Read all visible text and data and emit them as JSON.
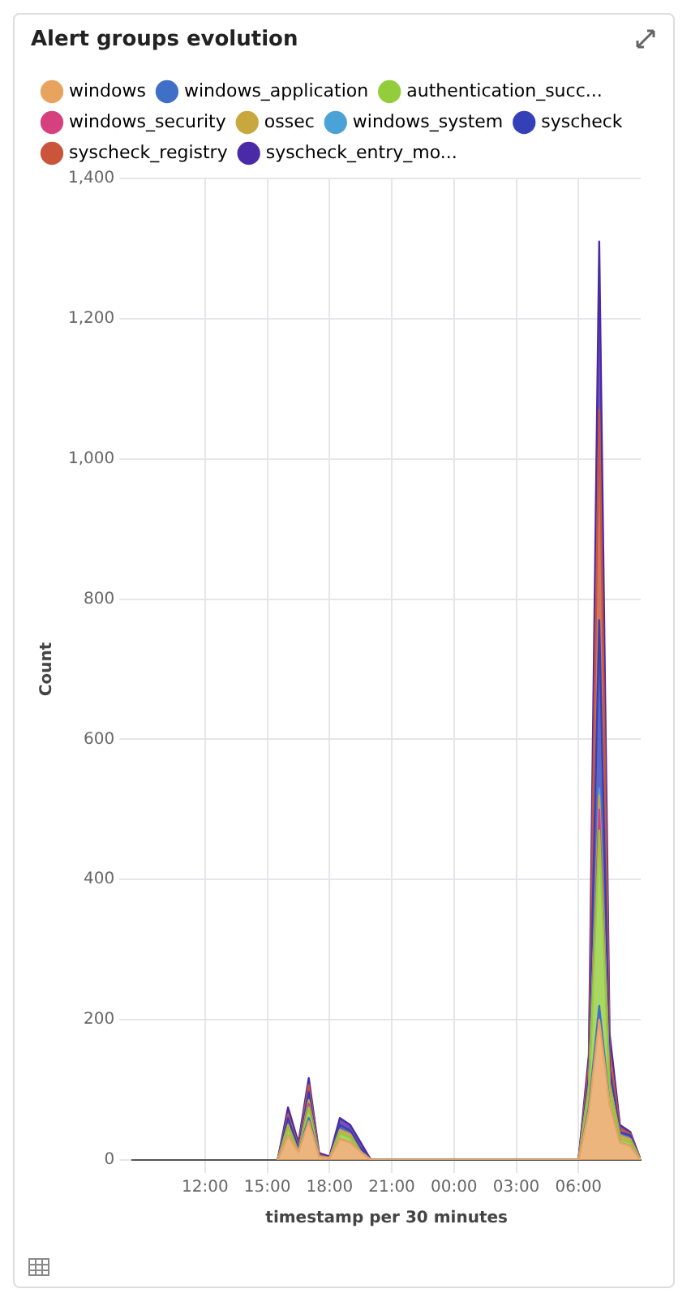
{
  "chart_data": {
    "type": "area",
    "title": "Alert groups evolution",
    "xlabel": "timestamp per 30 minutes",
    "ylabel": "Count",
    "stacked": true,
    "grid": true,
    "legend": "top",
    "marker": "none",
    "x": [
      "--01-01T15:30",
      "--01-01T16:00",
      "--01-01T16:30",
      "--01-01T17:00",
      "--01-01T17:30",
      "--01-01T18:00",
      "--01-01T18:30",
      "--01-01T19:00",
      "--01-01T19:30",
      "--01-01T20:00",
      "--01-01T20:30",
      "--01-01T21:00",
      "--01-01T21:30",
      "--01-01T22:00",
      "--01-01T22:30",
      "--01-01T23:00",
      "--01-01T23:30",
      "--01-02T00:00",
      "--01-02T00:30",
      "--01-02T01:00",
      "--01-02T01:30",
      "--01-02T02:00",
      "--01-02T02:30",
      "--01-02T03:00",
      "--01-02T03:30",
      "--01-02T04:00",
      "--01-02T04:30",
      "--01-02T05:00",
      "--01-02T05:30",
      "--01-02T06:00",
      "--01-02T06:30",
      "--01-02T07:00",
      "--01-02T07:30",
      "--01-02T08:00",
      "--01-02T08:30",
      "--01-02T09:00"
    ],
    "xlim": [
      "--01-01T08:30",
      "--01-02T09:00"
    ],
    "xticks": [
      {
        "value": "--01-01T12:00",
        "label": "12:00"
      },
      {
        "value": "--01-01T15:00",
        "label": "15:00"
      },
      {
        "value": "--01-01T18:00",
        "label": "18:00"
      },
      {
        "value": "--01-01T21:00",
        "label": "21:00"
      },
      {
        "value": "--01-02T00:00",
        "label": "00:00"
      },
      {
        "value": "--01-02T03:00",
        "label": "03:00"
      },
      {
        "value": "--01-02T06:00",
        "label": "06:00"
      }
    ],
    "ylim": [
      0,
      1400
    ],
    "yticks": [
      0,
      200,
      400,
      600,
      800,
      {
        "value": 1000,
        "label": "1,000"
      },
      {
        "value": 1200,
        "label": "1,200"
      },
      {
        "value": 1400,
        "label": "1,400"
      }
    ],
    "series": [
      {
        "name": "windows",
        "color": "#e8a35e",
        "values": [
          0,
          35,
          12,
          55,
          5,
          3,
          30,
          25,
          12,
          0,
          0,
          0,
          0,
          0,
          0,
          0,
          0,
          0,
          0,
          0,
          0,
          0,
          0,
          0,
          0,
          0,
          0,
          0,
          0,
          0,
          70,
          200,
          80,
          25,
          20,
          0
        ]
      },
      {
        "name": "windows_application",
        "color": "#3f6fc6",
        "values": [
          0,
          0,
          0,
          5,
          0,
          0,
          0,
          0,
          0,
          0,
          0,
          0,
          0,
          0,
          0,
          0,
          0,
          0,
          0,
          0,
          0,
          0,
          0,
          0,
          0,
          0,
          0,
          0,
          0,
          0,
          5,
          20,
          0,
          0,
          0,
          0
        ]
      },
      {
        "name": "authentication_succ...",
        "color": "#93cd3c",
        "values": [
          0,
          10,
          0,
          15,
          0,
          0,
          8,
          7,
          0,
          0,
          0,
          0,
          0,
          0,
          0,
          0,
          0,
          0,
          0,
          0,
          0,
          0,
          0,
          0,
          0,
          0,
          0,
          0,
          0,
          0,
          20,
          250,
          20,
          5,
          5,
          0
        ]
      },
      {
        "name": "windows_security",
        "color": "#d6407e",
        "values": [
          0,
          0,
          0,
          5,
          0,
          0,
          0,
          0,
          0,
          0,
          0,
          0,
          0,
          0,
          0,
          0,
          0,
          0,
          0,
          0,
          0,
          0,
          0,
          0,
          0,
          0,
          0,
          0,
          0,
          0,
          0,
          30,
          0,
          0,
          0,
          0
        ]
      },
      {
        "name": "ossec",
        "color": "#c8a83e",
        "values": [
          0,
          5,
          0,
          5,
          0,
          0,
          5,
          5,
          0,
          0,
          0,
          0,
          0,
          0,
          0,
          0,
          0,
          0,
          0,
          0,
          0,
          0,
          0,
          0,
          0,
          0,
          0,
          0,
          0,
          0,
          10,
          20,
          10,
          5,
          5,
          0
        ]
      },
      {
        "name": "windows_system",
        "color": "#4aa2d6",
        "values": [
          0,
          0,
          0,
          0,
          0,
          0,
          0,
          0,
          0,
          0,
          0,
          0,
          0,
          0,
          0,
          0,
          0,
          0,
          0,
          0,
          0,
          0,
          0,
          0,
          0,
          0,
          0,
          0,
          0,
          0,
          0,
          10,
          0,
          0,
          0,
          0
        ]
      },
      {
        "name": "syscheck",
        "color": "#3440b8",
        "values": [
          0,
          10,
          5,
          12,
          0,
          0,
          7,
          5,
          5,
          0,
          0,
          0,
          0,
          0,
          0,
          0,
          0,
          0,
          0,
          0,
          0,
          0,
          0,
          0,
          0,
          0,
          0,
          0,
          0,
          0,
          15,
          240,
          20,
          5,
          5,
          0
        ]
      },
      {
        "name": "syscheck_registry",
        "color": "#c9553a",
        "values": [
          0,
          5,
          3,
          10,
          2,
          0,
          0,
          0,
          0,
          0,
          0,
          0,
          0,
          0,
          0,
          0,
          0,
          0,
          0,
          0,
          0,
          0,
          0,
          0,
          0,
          0,
          0,
          0,
          0,
          0,
          15,
          300,
          25,
          5,
          2,
          0
        ]
      },
      {
        "name": "syscheck_entry_mo...",
        "color": "#4b2aa8",
        "values": [
          0,
          10,
          5,
          10,
          3,
          2,
          10,
          8,
          8,
          0,
          0,
          0,
          0,
          0,
          0,
          0,
          0,
          0,
          0,
          0,
          0,
          0,
          0,
          0,
          0,
          0,
          0,
          0,
          0,
          0,
          15,
          240,
          25,
          5,
          3,
          0
        ]
      }
    ]
  }
}
